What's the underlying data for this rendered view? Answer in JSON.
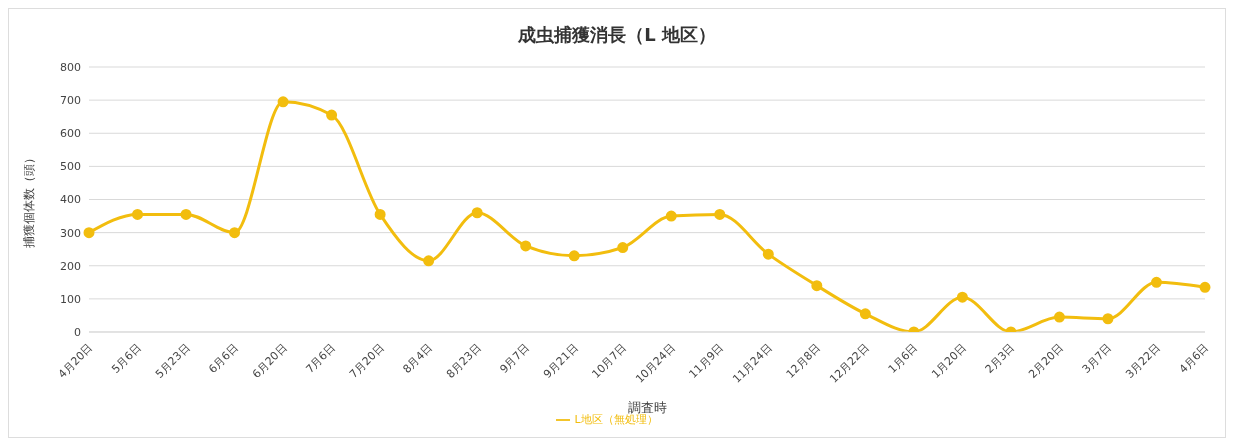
{
  "chart_data": {
    "type": "line",
    "title": "成虫捕獲消長（L 地区）",
    "xlabel": "調査時",
    "ylabel": "捕獲個体数（頭）",
    "categories": [
      "4月20日",
      "5月6日",
      "5月23日",
      "6月6日",
      "6月20日",
      "7月6日",
      "7月20日",
      "8月4日",
      "8月23日",
      "9月7日",
      "9月21日",
      "10月7日",
      "10月24日",
      "11月9日",
      "11月24日",
      "12月8日",
      "12月22日",
      "1月6日",
      "1月20日",
      "2月3日",
      "2月20日",
      "3月7日",
      "3月22日",
      "4月6日"
    ],
    "series": [
      {
        "name": "L地区（無処理）",
        "color": "#f2bd0e",
        "values": [
          300,
          355,
          355,
          300,
          695,
          655,
          355,
          215,
          360,
          260,
          230,
          255,
          350,
          355,
          235,
          140,
          55,
          0,
          105,
          0,
          45,
          40,
          150,
          135
        ]
      }
    ],
    "ylim": [
      0,
      800
    ],
    "yticks": [
      0,
      100,
      200,
      300,
      400,
      500,
      600,
      700,
      800
    ],
    "grid": "y",
    "legend": "bottom",
    "marker": "circle",
    "line_style": "solid"
  }
}
